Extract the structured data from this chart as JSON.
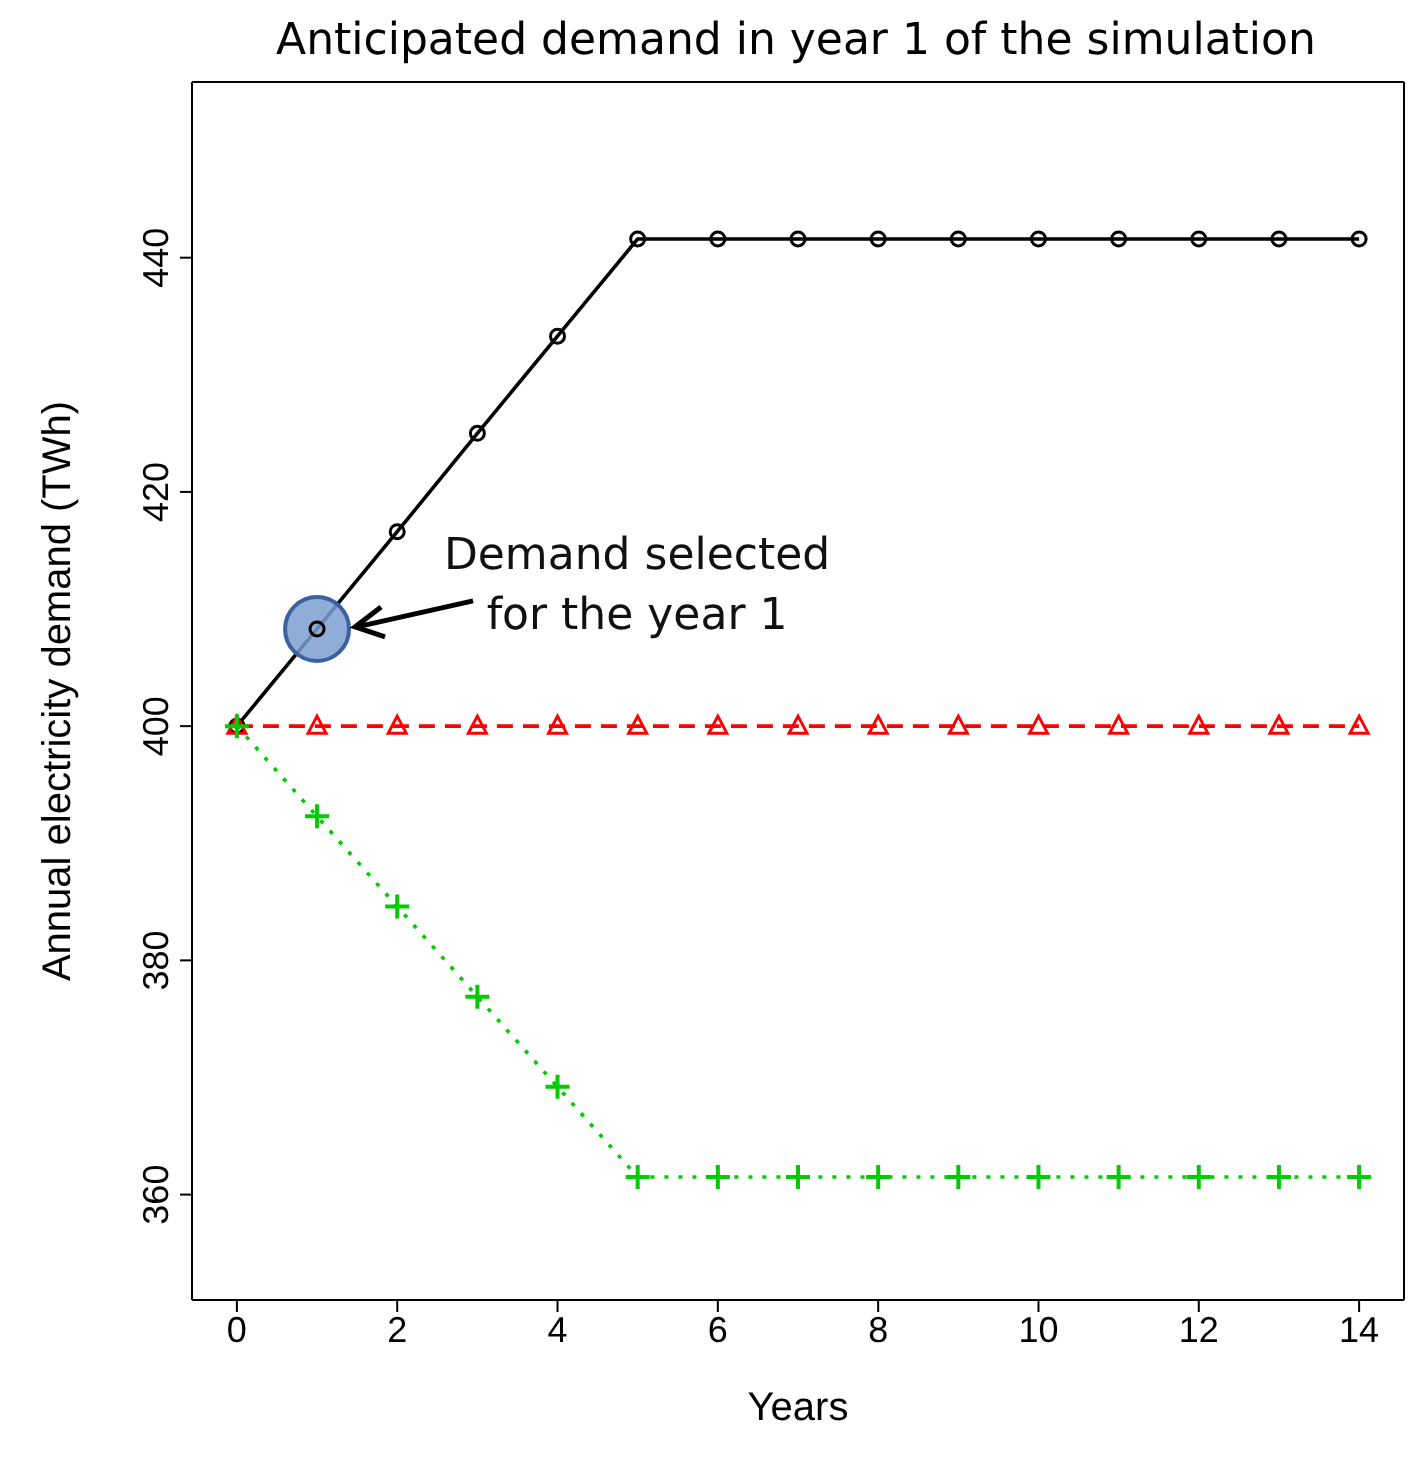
{
  "chart_data": {
    "type": "line",
    "title": "Anticipated demand in year 1 of the simulation",
    "xlabel": "Years",
    "ylabel": "Annual electricity demand (TWh)",
    "x": [
      0,
      1,
      2,
      3,
      4,
      5,
      6,
      7,
      8,
      9,
      10,
      11,
      12,
      13,
      14
    ],
    "series": [
      {
        "type": "scatter",
        "color": "#7b9fd0",
        "marker": "circle",
        "x": [
          1
        ],
        "values": [
          408.3
        ]
      },
      {
        "color": "#000000",
        "marker": "circle",
        "line_style": "solid",
        "values": [
          400,
          408.3,
          416.6,
          425,
          433.3,
          441.6,
          441.6,
          441.6,
          441.6,
          441.6,
          441.6,
          441.6,
          441.6,
          441.6,
          441.6
        ]
      },
      {
        "color": "#ff0000",
        "marker": "triangle",
        "line_style": "dashed",
        "values": [
          400,
          400,
          400,
          400,
          400,
          400,
          400,
          400,
          400,
          400,
          400,
          400,
          400,
          400,
          400
        ]
      },
      {
        "color": "#00cc00",
        "marker": "cross",
        "line_style": "dotted",
        "values": [
          400,
          392.3,
          384.6,
          376.9,
          369.2,
          361.5,
          361.5,
          361.5,
          361.5,
          361.5,
          361.5,
          361.5,
          361.5,
          361.5,
          361.5
        ]
      }
    ],
    "xlim": [
      -0.56,
      14.56
    ],
    "xticks": [
      0,
      2,
      4,
      6,
      8,
      10,
      12,
      14
    ],
    "ylim": [
      351,
      455
    ],
    "yticks": [
      360,
      380,
      400,
      420,
      440
    ],
    "grid": false,
    "legend": false,
    "annotations": [
      {
        "text": "Demand selected for the year 1",
        "x": 1,
        "y": 408.3
      }
    ]
  }
}
